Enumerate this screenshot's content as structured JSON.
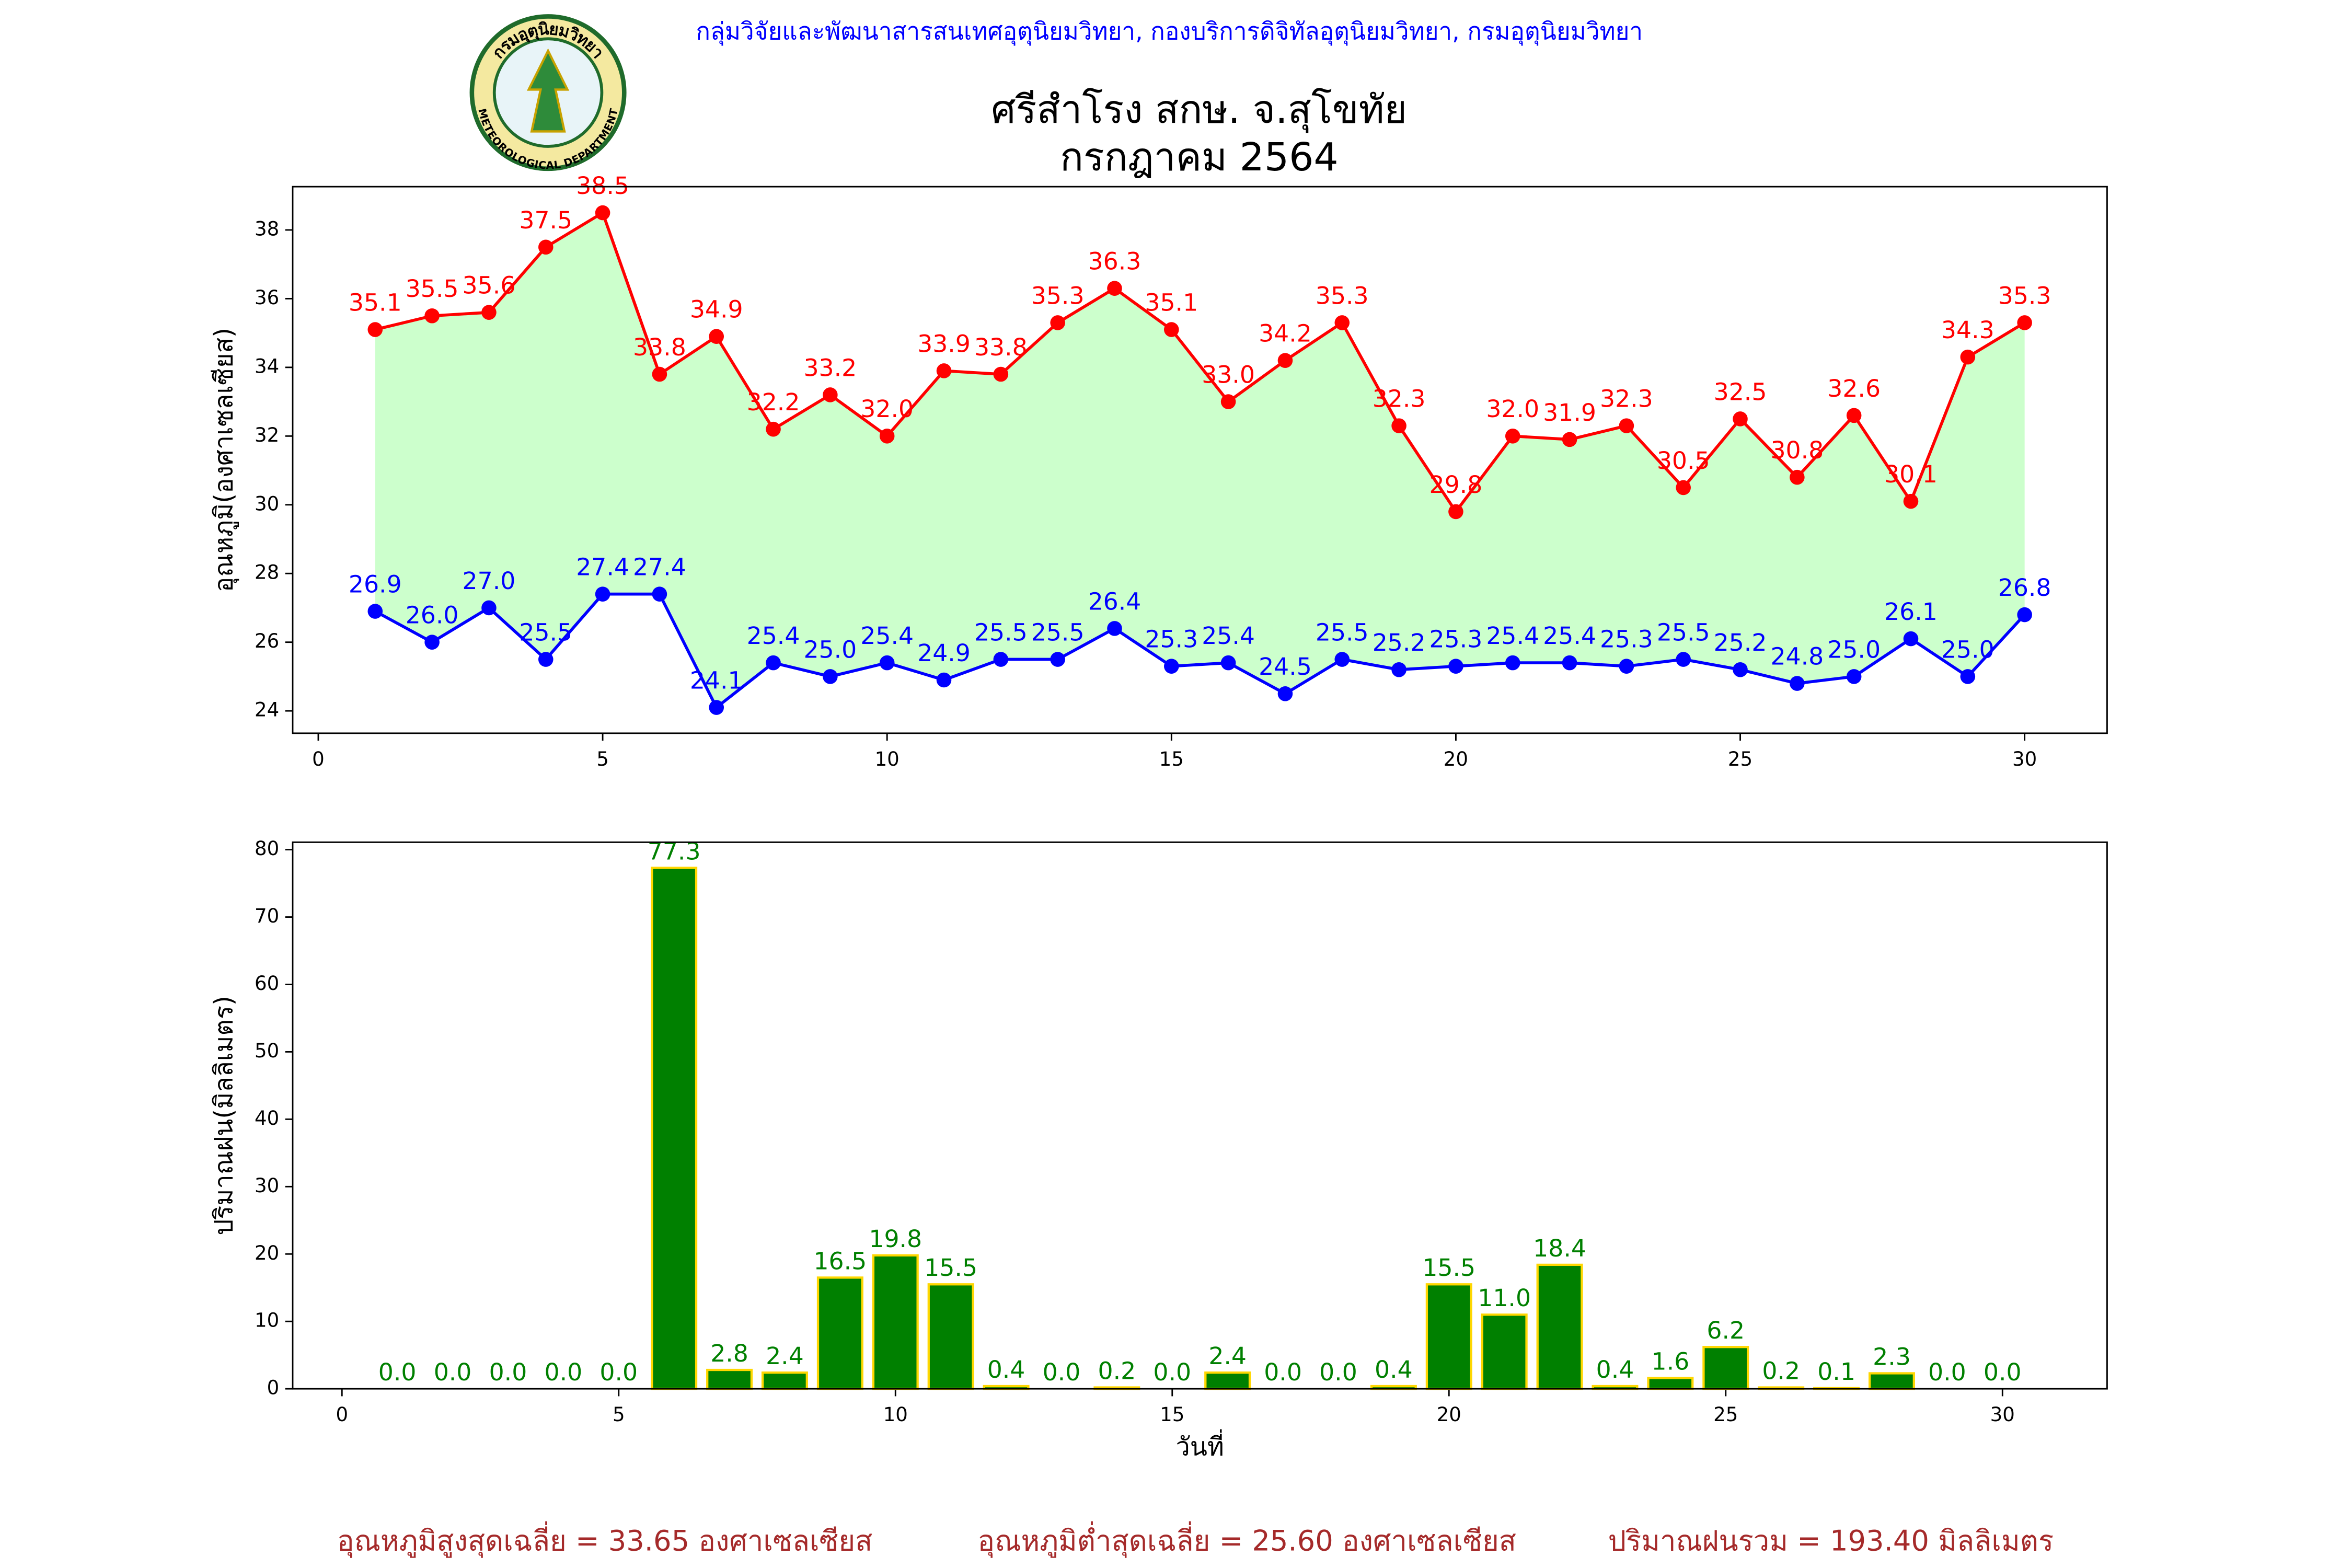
{
  "header": "กลุ่มวิจัยและพัฒนาสารสนเทศอุตุนิยมวิทยา, กองบริการดิจิทัลอุตุนิยมวิทยา, กรมอุตุนิยมวิทยา",
  "logo": {
    "top": "กรมอุตุนิยมวิทยา",
    "bottom": "METEOROLOGICAL DEPARTMENT"
  },
  "footer": [
    "อุณหภูมิสูงสุดเฉลี่ย = 33.65 องศาเซลเซียส",
    "อุณหภูมิต่ำสุดเฉลี่ย = 25.60 องศาเซลเซียส",
    "ปริมาณฝนรวม = 193.40 มิลลิเมตร"
  ],
  "chart_data": [
    {
      "type": "line",
      "title": "ศรีสำโรง สกษ. จ.สุโขทัย",
      "subtitle": "กรกฎาคม 2564",
      "ylabel": "อุณหภูมิ(องศาเซลเซียส)",
      "x": [
        1,
        2,
        3,
        4,
        5,
        6,
        7,
        8,
        9,
        10,
        11,
        12,
        13,
        14,
        15,
        16,
        17,
        18,
        19,
        20,
        21,
        22,
        23,
        24,
        25,
        26,
        27,
        28,
        29,
        30
      ],
      "fill_color": "#ccffcc",
      "series": [
        {
          "color": "#ff0000",
          "values": [
            35.1,
            35.5,
            35.6,
            37.5,
            38.5,
            33.8,
            34.9,
            32.2,
            33.2,
            32.0,
            33.9,
            33.8,
            35.3,
            36.3,
            35.1,
            33.0,
            34.2,
            35.3,
            32.3,
            29.8,
            32.0,
            31.9,
            32.3,
            30.5,
            32.5,
            30.8,
            32.6,
            30.1,
            34.3,
            35.3
          ],
          "value_labels": [
            "35.1",
            "35.5",
            "35.6",
            "37.5",
            "38.5",
            "33.8",
            "34.9",
            "32.2",
            "33.2",
            "32.0",
            "33.9",
            "33.8",
            "35.3",
            "36.3",
            "35.1",
            "33.0",
            "34.2",
            "35.3",
            "32.3",
            "29.8",
            "32.0",
            "31.9",
            "32.3",
            "30.5",
            "32.5",
            "30.8",
            "32.6",
            "30.1",
            "34.3",
            "35.3"
          ]
        },
        {
          "color": "#0000ff",
          "values": [
            26.9,
            26.0,
            27.0,
            25.5,
            27.4,
            27.4,
            24.1,
            25.4,
            25.0,
            25.4,
            24.9,
            25.5,
            25.5,
            26.4,
            25.3,
            25.4,
            24.5,
            25.5,
            25.2,
            25.3,
            25.4,
            25.4,
            25.3,
            25.5,
            25.2,
            24.8,
            25.0,
            26.1,
            25.0,
            26.8
          ],
          "value_labels": [
            "26.9",
            "26.0",
            "27.0",
            "25.5",
            "27.4",
            "27.4",
            "24.1",
            "25.4",
            "25.0",
            "25.4",
            "24.9",
            "25.5",
            "25.5",
            "26.4",
            "25.3",
            "25.4",
            "24.5",
            "25.5",
            "25.2",
            "25.3",
            "25.4",
            "25.4",
            "25.3",
            "25.5",
            "25.2",
            "24.8",
            "25.0",
            "26.1",
            "25.0",
            "26.8"
          ]
        }
      ],
      "xlim": [
        -0.45,
        31.45
      ],
      "xticks": [
        0,
        5,
        10,
        15,
        20,
        25,
        30
      ],
      "ylim": [
        23.35,
        39.26
      ],
      "yticks": [
        24,
        26,
        28,
        30,
        32,
        34,
        36,
        38
      ]
    },
    {
      "type": "bar",
      "xlabel": "วันที่",
      "ylabel": "ปริมาณฝน(มิลลิเมตร)",
      "x": [
        1,
        2,
        3,
        4,
        5,
        6,
        7,
        8,
        9,
        10,
        11,
        12,
        13,
        14,
        15,
        16,
        17,
        18,
        19,
        20,
        21,
        22,
        23,
        24,
        25,
        26,
        27,
        28,
        29,
        30
      ],
      "values": [
        0.0,
        0.0,
        0.0,
        0.0,
        0.0,
        77.3,
        2.8,
        2.4,
        16.5,
        19.8,
        15.5,
        0.4,
        0.0,
        0.2,
        0.0,
        2.4,
        0.0,
        0.0,
        0.4,
        15.5,
        11.0,
        18.4,
        0.4,
        1.6,
        6.2,
        0.2,
        0.1,
        2.3,
        0.0,
        0.0
      ],
      "value_labels": [
        "0.0",
        "0.0",
        "0.0",
        "0.0",
        "0.0",
        "77.3",
        "2.8",
        "2.4",
        "16.5",
        "19.8",
        "15.5",
        "0.4",
        "0.0",
        "0.2",
        "0.0",
        "2.4",
        "0.0",
        "0.0",
        "0.4",
        "15.5",
        "11.0",
        "18.4",
        "0.4",
        "1.6",
        "6.2",
        "0.2",
        "0.1",
        "2.3",
        "0.0",
        "0.0"
      ],
      "color": "#008000",
      "edge_color": "#ffd700",
      "label_color": "#008000",
      "xlim": [
        -0.89,
        31.89
      ],
      "xticks": [
        0,
        5,
        10,
        15,
        20,
        25,
        30
      ],
      "ylim": [
        0,
        81.1
      ],
      "yticks": [
        0,
        10,
        20,
        30,
        40,
        50,
        60,
        70,
        80
      ]
    }
  ]
}
